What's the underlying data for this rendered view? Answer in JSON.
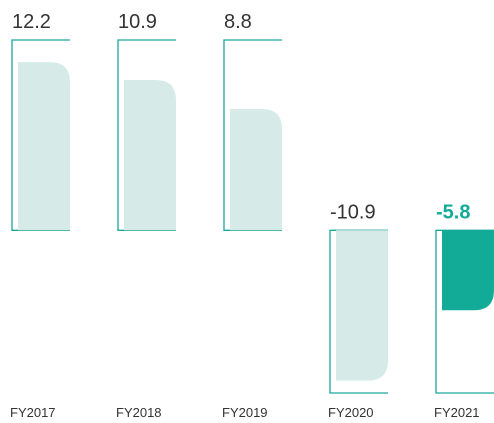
{
  "chart_data": {
    "type": "bar",
    "categories": [
      "FY2017",
      "FY2018",
      "FY2019",
      "FY2020",
      "FY2021"
    ],
    "values": [
      12.2,
      10.9,
      8.8,
      -10.9,
      -5.8
    ],
    "colors": [
      "#d6ebe7",
      "#d6ebe7",
      "#d6ebe7",
      "#d6ebe7",
      "#12ab98"
    ],
    "frame_color": "#1aa89a",
    "highlight_index": 4,
    "ylim": [
      -11.8,
      13.8
    ]
  }
}
